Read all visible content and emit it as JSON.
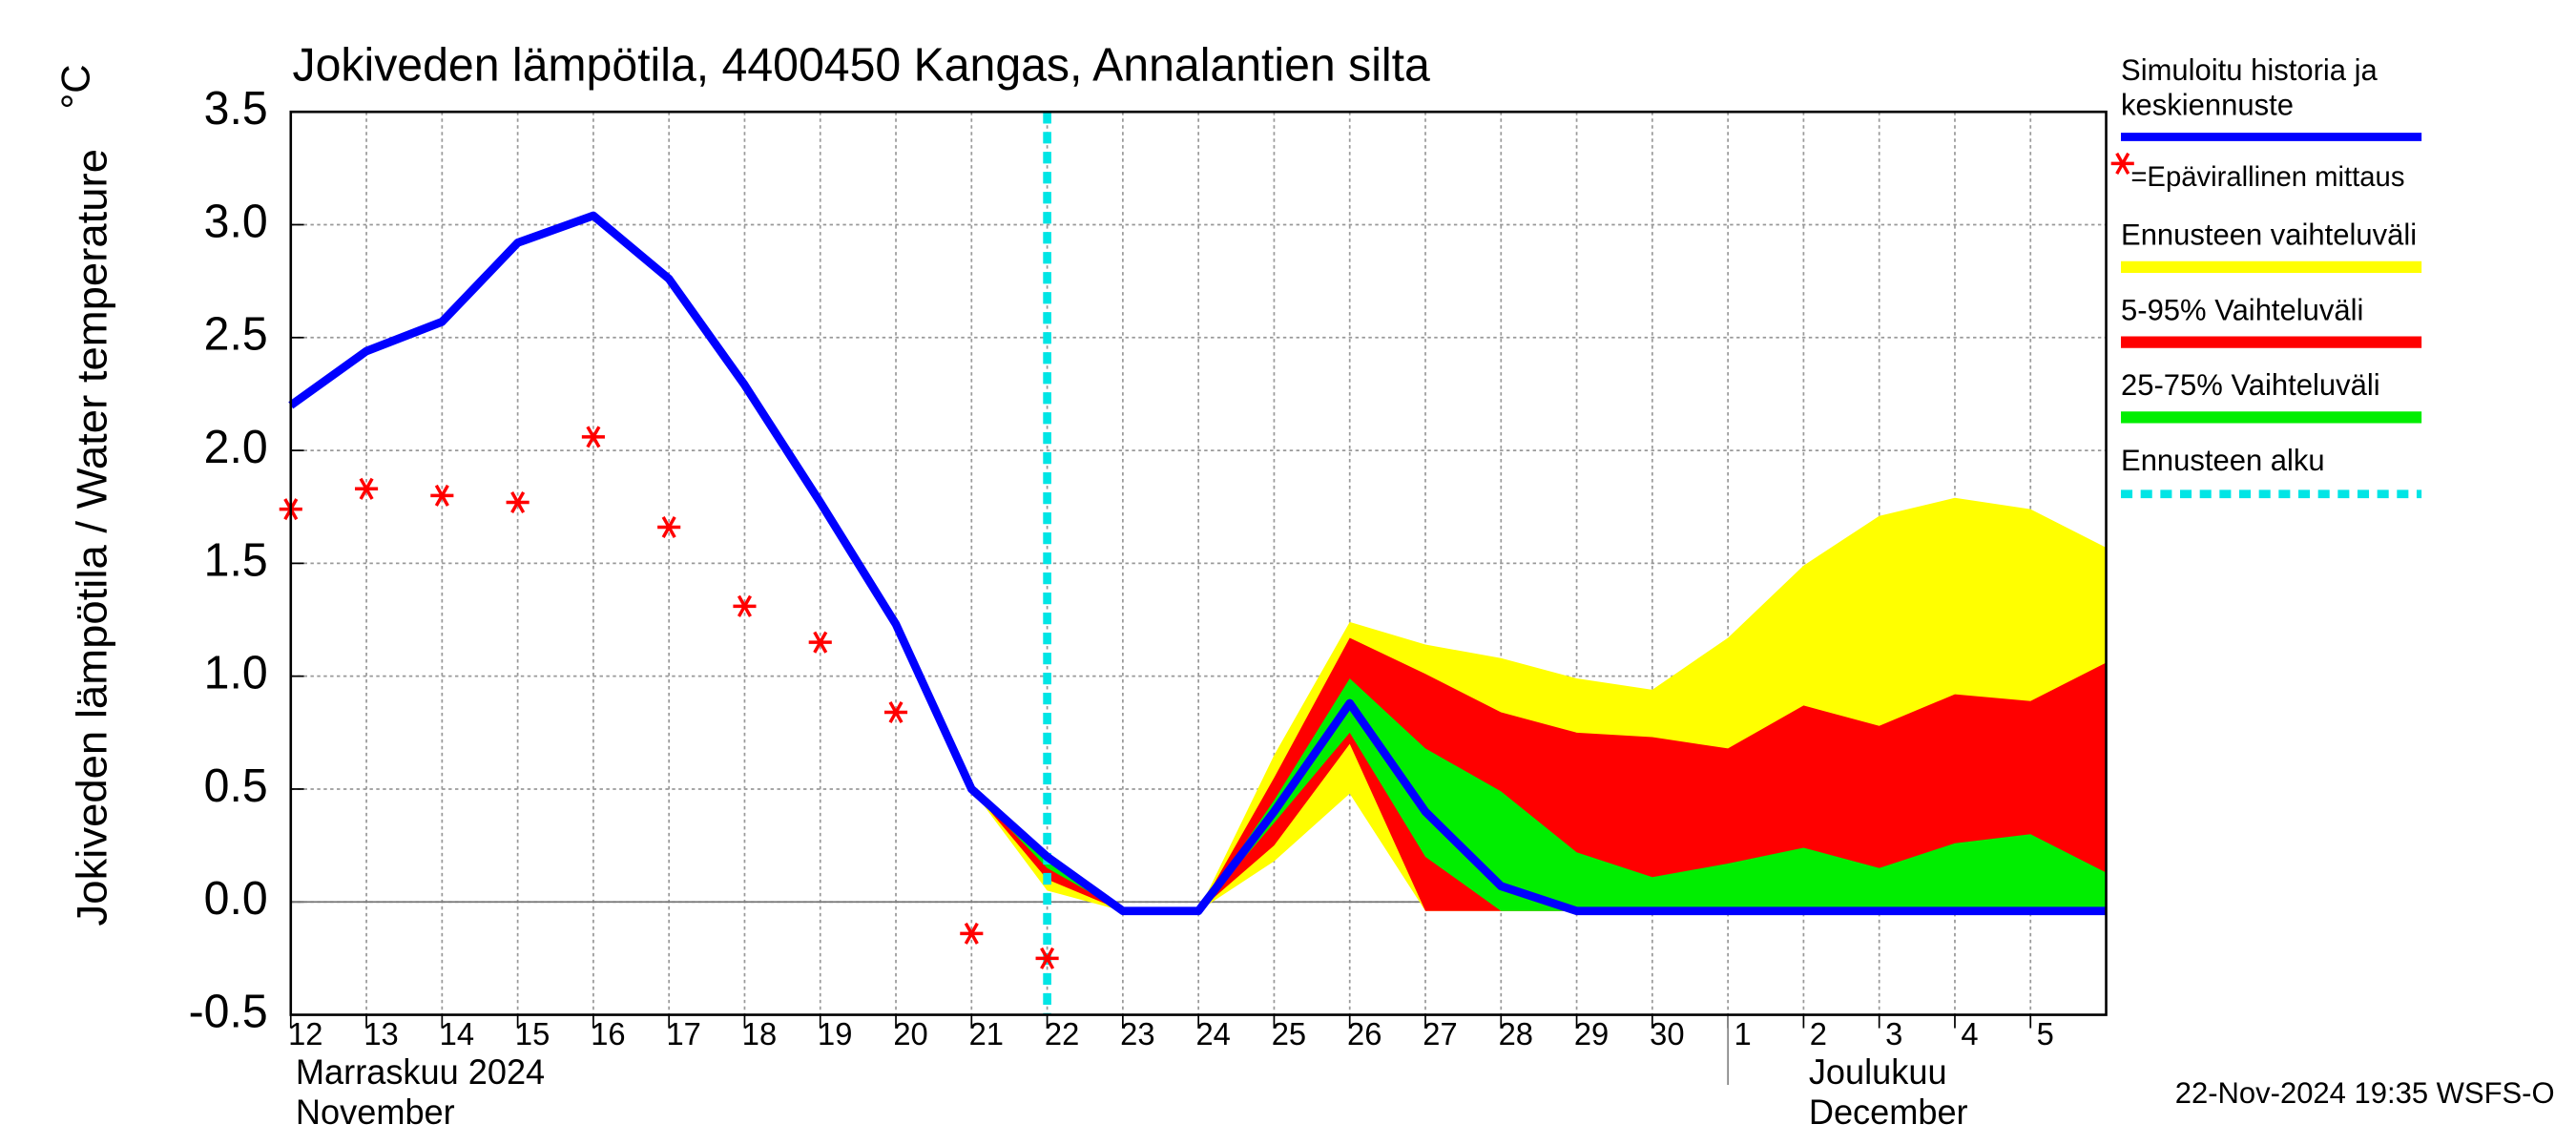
{
  "chart_data": {
    "type": "forecast",
    "title": "Jokiveden lämpötila, 4400450 Kangas, Annalantien silta",
    "y_label": "Jokiveden lämpötila / Water temperature",
    "y_unit": "°C",
    "month_labels": [
      "Marraskuu 2024",
      "November",
      "Joulukuu",
      "December"
    ],
    "timestamp": "22-Nov-2024 19:35 WSFS-O",
    "xlim": [
      0,
      24
    ],
    "xticks": [
      {
        "value": 0,
        "label": "12"
      },
      {
        "value": 1,
        "label": "13"
      },
      {
        "value": 2,
        "label": "14"
      },
      {
        "value": 3,
        "label": "15"
      },
      {
        "value": 4,
        "label": "16"
      },
      {
        "value": 5,
        "label": "17"
      },
      {
        "value": 6,
        "label": "18"
      },
      {
        "value": 7,
        "label": "19"
      },
      {
        "value": 8,
        "label": "20"
      },
      {
        "value": 9,
        "label": "21"
      },
      {
        "value": 10,
        "label": "22"
      },
      {
        "value": 11,
        "label": "23"
      },
      {
        "value": 12,
        "label": "24"
      },
      {
        "value": 13,
        "label": "25"
      },
      {
        "value": 14,
        "label": "26"
      },
      {
        "value": 15,
        "label": "27"
      },
      {
        "value": 16,
        "label": "28"
      },
      {
        "value": 17,
        "label": "29"
      },
      {
        "value": 18,
        "label": "30"
      },
      {
        "value": 19,
        "label": "1"
      },
      {
        "value": 20,
        "label": "2"
      },
      {
        "value": 21,
        "label": "3"
      },
      {
        "value": 22,
        "label": "4"
      },
      {
        "value": 23,
        "label": "5"
      }
    ],
    "ylim": [
      -0.5,
      3.5
    ],
    "yticks": [
      -0.5,
      {
        "value": 0,
        "label": "0.0"
      },
      0.5,
      {
        "value": 1,
        "label": "1.0"
      },
      1.5,
      {
        "value": 2,
        "label": "2.0"
      },
      2.5,
      {
        "value": 3,
        "label": "3.0"
      },
      3.5
    ],
    "grid": true,
    "month_boundary": 19,
    "bands": [
      {
        "name": "Ennusteen vaihteluväli",
        "color": "#ffff00",
        "x": [
          9,
          10,
          11,
          12,
          13,
          14,
          15,
          16,
          17,
          18,
          19,
          20,
          21,
          22,
          23,
          24
        ],
        "upper": [
          0.5,
          0.22,
          -0.04,
          -0.04,
          0.65,
          1.24,
          1.14,
          1.08,
          0.99,
          0.94,
          1.17,
          1.49,
          1.71,
          1.79,
          1.74,
          1.57
        ],
        "lower": [
          0.5,
          0.05,
          -0.04,
          -0.04,
          0.18,
          0.48,
          -0.04,
          -0.04,
          -0.04,
          -0.04,
          -0.04,
          -0.04,
          -0.04,
          -0.04,
          -0.04,
          -0.04
        ]
      },
      {
        "name": "5-95% Vaihteluväli",
        "color": "#ff0000",
        "x": [
          9,
          10,
          11,
          12,
          13,
          14,
          15,
          16,
          17,
          18,
          19,
          20,
          21,
          22,
          23,
          24
        ],
        "upper": [
          0.5,
          0.2,
          -0.04,
          -0.04,
          0.55,
          1.17,
          1.01,
          0.84,
          0.75,
          0.73,
          0.68,
          0.87,
          0.78,
          0.92,
          0.89,
          1.06
        ],
        "lower": [
          0.5,
          0.1,
          -0.04,
          -0.04,
          0.25,
          0.7,
          -0.04,
          -0.04,
          -0.04,
          -0.04,
          -0.04,
          -0.04,
          -0.04,
          -0.04,
          -0.04,
          -0.04
        ]
      },
      {
        "name": "25-75% Vaihteluväli",
        "color": "#00ee00",
        "x": [
          9,
          10,
          11,
          12,
          13,
          14,
          15,
          16,
          17,
          18,
          19,
          20,
          21,
          22,
          23,
          24
        ],
        "upper": [
          0.5,
          0.18,
          -0.04,
          -0.04,
          0.45,
          0.99,
          0.68,
          0.49,
          0.22,
          0.11,
          0.17,
          0.24,
          0.15,
          0.26,
          0.3,
          0.13
        ],
        "lower": [
          0.5,
          0.15,
          -0.04,
          -0.04,
          0.35,
          0.75,
          0.2,
          -0.04,
          -0.04,
          -0.04,
          -0.04,
          -0.04,
          -0.04,
          -0.04,
          -0.04,
          -0.04
        ]
      }
    ],
    "series": [
      {
        "name": "Simuloitu historia ja keskiennuste",
        "color": "#0000ff",
        "x": [
          0,
          1,
          2,
          3,
          4,
          5,
          6,
          7,
          8,
          9,
          10,
          11,
          12,
          13,
          14,
          15,
          16,
          17,
          18,
          19,
          20,
          21,
          22,
          23,
          24
        ],
        "values": [
          2.2,
          2.44,
          2.57,
          2.92,
          3.04,
          2.76,
          2.29,
          1.77,
          1.23,
          0.5,
          0.2,
          -0.04,
          -0.04,
          0.4,
          0.88,
          0.4,
          0.07,
          -0.04,
          -0.04,
          -0.04,
          -0.04,
          -0.04,
          -0.04,
          -0.04,
          -0.04
        ]
      }
    ],
    "measurements": {
      "name": "=Epävirallinen mittaus",
      "color": "#ff0000",
      "x": [
        0,
        1,
        2,
        3,
        4,
        5,
        6,
        7,
        8,
        9,
        10
      ],
      "values": [
        1.74,
        1.83,
        1.8,
        1.77,
        2.06,
        1.66,
        1.31,
        1.15,
        0.84,
        -0.14,
        -0.25
      ]
    },
    "forecast_start": {
      "name": "Ennusteen alku",
      "color": "#00e5e5",
      "x": 10
    }
  }
}
